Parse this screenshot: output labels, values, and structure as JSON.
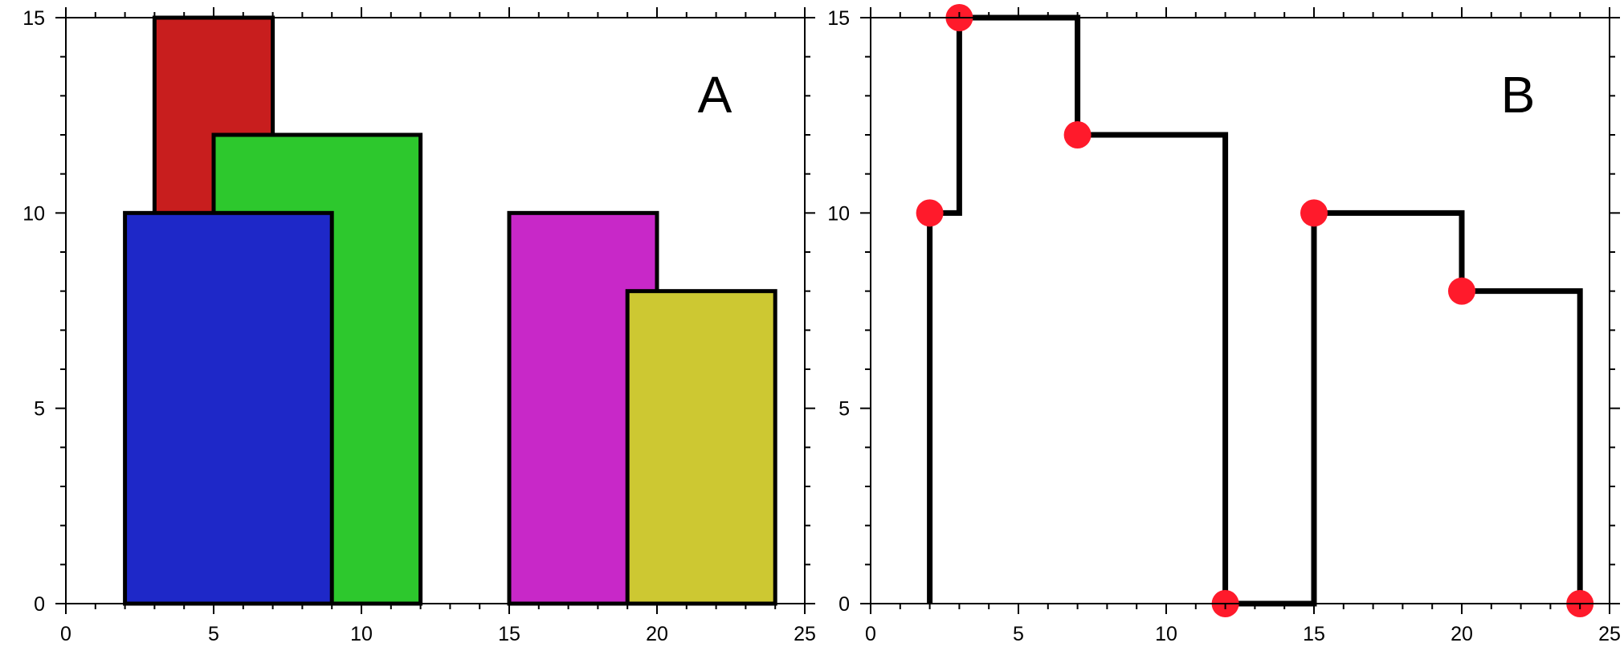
{
  "chart_data": [
    {
      "type": "rectangles",
      "panel_label": "A",
      "xlim": [
        0,
        25
      ],
      "ylim": [
        0,
        15
      ],
      "xticks": [
        0,
        5,
        10,
        15,
        20,
        25
      ],
      "yticks": [
        0,
        5,
        10,
        15
      ],
      "grid": false,
      "buildings": [
        {
          "left": 3,
          "right": 7,
          "height": 15,
          "color": "#c81e1e"
        },
        {
          "left": 5,
          "right": 12,
          "height": 12,
          "color": "#2dc82d"
        },
        {
          "left": 2,
          "right": 9,
          "height": 10,
          "color": "#1e28c8"
        },
        {
          "left": 15,
          "right": 20,
          "height": 10,
          "color": "#c828c8"
        },
        {
          "left": 19,
          "right": 24,
          "height": 8,
          "color": "#cdc832"
        }
      ]
    },
    {
      "type": "line",
      "panel_label": "B",
      "xlim": [
        0,
        25
      ],
      "ylim": [
        0,
        15
      ],
      "xticks": [
        0,
        5,
        10,
        15,
        20,
        25
      ],
      "yticks": [
        0,
        5,
        10,
        15
      ],
      "grid": false,
      "outline": [
        [
          2,
          0
        ],
        [
          2,
          10
        ],
        [
          3,
          10
        ],
        [
          3,
          15
        ],
        [
          7,
          15
        ],
        [
          7,
          12
        ],
        [
          12,
          12
        ],
        [
          12,
          0
        ],
        [
          15,
          0
        ],
        [
          15,
          10
        ],
        [
          20,
          10
        ],
        [
          20,
          8
        ],
        [
          24,
          8
        ],
        [
          24,
          0
        ]
      ],
      "key_points": [
        [
          2,
          10
        ],
        [
          3,
          15
        ],
        [
          7,
          12
        ],
        [
          12,
          0
        ],
        [
          15,
          10
        ],
        [
          20,
          8
        ],
        [
          24,
          0
        ]
      ],
      "line_color": "#000000",
      "point_color": "#ff1a2b"
    }
  ]
}
